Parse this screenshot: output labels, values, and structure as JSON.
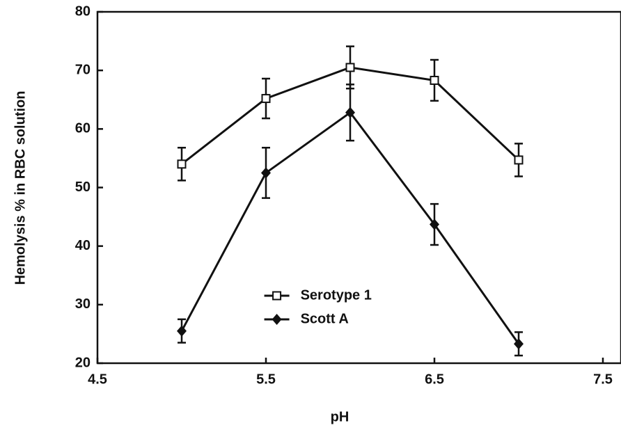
{
  "chart_data": {
    "type": "line",
    "xlabel": "pH",
    "ylabel": "Hemolysis % in RBC solution",
    "x": [
      5.0,
      5.5,
      6.0,
      6.5,
      7.0
    ],
    "series": [
      {
        "name": "Serotype 1",
        "color": "#111111",
        "marker": "open-square",
        "values": [
          54,
          65.2,
          70.5,
          68.3,
          54.7
        ],
        "errors": [
          2.8,
          3.4,
          3.6,
          3.5,
          2.8
        ]
      },
      {
        "name": "Scott A",
        "color": "#111111",
        "marker": "filled-diamond",
        "values": [
          25.5,
          52.5,
          62.8,
          43.7,
          23.3
        ],
        "errors": [
          2,
          4.3,
          4.8,
          3.5,
          2
        ]
      }
    ],
    "xlim": [
      4.5,
      7.5
    ],
    "xticks": [
      4.5,
      5.5,
      6.5,
      7.5
    ],
    "ylim": [
      20,
      80
    ],
    "yticks": [
      20,
      30,
      40,
      50,
      60,
      70,
      80
    ],
    "legend": "lower center",
    "grid": false
  }
}
